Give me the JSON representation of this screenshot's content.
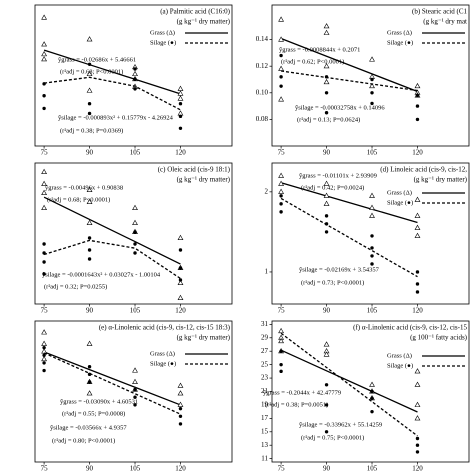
{
  "chart_data": [
    {
      "type": "scatter",
      "title": "(a) Palmitic acid (C16:0)",
      "subtitle": "(g kg⁻¹ dry matter)",
      "xlim": [
        72,
        137
      ],
      "xticks": [
        75,
        90,
        105,
        120
      ],
      "ylim": [
        0.8,
        4.7
      ],
      "fit_x": [
        75,
        90,
        105,
        120
      ],
      "legend": true,
      "series": [
        {
          "name": "Grass (Δ)",
          "marker": "triangle",
          "line": "solid",
          "color": "#000000",
          "x": [
            75,
            75,
            75,
            75,
            90,
            90,
            90,
            105,
            105,
            105,
            105,
            120,
            120,
            120,
            120
          ],
          "values": [
            4.35,
            3.61,
            3.34,
            3.2,
            3.75,
            2.79,
            2.33,
            2.98,
            2.79,
            2.65,
            2.44,
            2.38,
            2.25,
            2.11,
            1.7
          ],
          "fit": [
            3.452,
            3.049,
            2.646,
            2.243
          ]
        },
        {
          "name": "Silage (●)",
          "marker": "dot",
          "line": "dashed",
          "color": "#000000",
          "x": [
            75,
            75,
            75,
            90,
            90,
            90,
            105,
            105,
            105,
            120,
            120,
            120
          ],
          "values": [
            2.52,
            2.19,
            1.84,
            3.06,
            1.97,
            1.7,
            2.93,
            2.65,
            2.38,
            1.97,
            1.62,
            1.29
          ],
          "fit": [
            2.54,
            2.7,
            2.454,
            1.8
          ]
        }
      ],
      "annotations": [
        "ŷgrass = -0.02686x + 5.46661",
        "(r²adj = 0.68; P<0.0001)",
        "ŷsilage = -0.000893x² + 0.15779x - 4.26924",
        "(r²adj = 0.38; P=0.0369)"
      ]
    },
    {
      "type": "scatter",
      "title": "(b) Stearic acid (C1",
      "subtitle": "(g kg⁻¹ dry mat",
      "xlim": [
        72,
        137
      ],
      "xticks": [
        75,
        90,
        105,
        120
      ],
      "ylim": [
        0.06,
        0.166
      ],
      "yticks": [
        0.08,
        {
          "value": 0.1,
          "label": "0.10"
        },
        0.12,
        0.14
      ],
      "fit_x": [
        75,
        90,
        105,
        120
      ],
      "legend": true,
      "series": [
        {
          "name": "Grass (Δ)",
          "marker": "triangle",
          "line": "solid",
          "color": "#000000",
          "x": [
            75,
            75,
            75,
            75,
            90,
            90,
            90,
            90,
            105,
            105,
            105,
            120,
            120,
            120
          ],
          "values": [
            0.155,
            0.14,
            0.118,
            0.095,
            0.15,
            0.145,
            0.12,
            0.108,
            0.125,
            0.112,
            0.105,
            0.105,
            0.1,
            0.098
          ],
          "fit": [
            0.1408,
            0.1275,
            0.1142,
            0.101
          ]
        },
        {
          "name": "Silage (●)",
          "marker": "dot",
          "line": "dashed",
          "color": "#000000",
          "x": [
            75,
            75,
            75,
            90,
            90,
            90,
            105,
            105,
            105,
            120,
            120,
            120
          ],
          "values": [
            0.128,
            0.112,
            0.105,
            0.112,
            0.1,
            0.085,
            0.11,
            0.1,
            0.092,
            0.098,
            0.09,
            0.08
          ],
          "fit": [
            0.1164,
            0.1115,
            0.1066,
            0.1017
          ]
        }
      ],
      "annotations": [
        "ŷgrass = -0.0008844x + 0.2071",
        "(r²adj = 0.62; P<0.0001)",
        "ŷsilage = -0.00032758x + 0.14096",
        "(r²adj = 0.13; P=0.0624)"
      ]
    },
    {
      "type": "scatter",
      "title": "(c) Oleic acid (cis-9 18:1)",
      "subtitle": "(g kg⁻¹ dry matter)",
      "xlim": [
        72,
        137
      ],
      "xticks": [
        75,
        90,
        105,
        120
      ],
      "ylim": [
        0.18,
        0.65
      ],
      "fit_x": [
        75,
        90,
        105,
        120
      ],
      "legend": false,
      "series": [
        {
          "name": "Grass (Δ)",
          "marker": "triangle",
          "line": "solid",
          "color": "#000000",
          "x": [
            75,
            75,
            75,
            75,
            90,
            90,
            90,
            105,
            105,
            105,
            120,
            120,
            120,
            120
          ],
          "values": [
            0.62,
            0.58,
            0.55,
            0.5,
            0.56,
            0.52,
            0.45,
            0.5,
            0.45,
            0.42,
            0.4,
            0.3,
            0.25,
            0.2
          ],
          "fit": [
            0.536,
            0.462,
            0.388,
            0.313
          ]
        },
        {
          "name": "Silage (●)",
          "marker": "dot",
          "line": "dashed",
          "color": "#000000",
          "x": [
            75,
            75,
            75,
            75,
            90,
            90,
            90,
            105,
            105,
            105,
            120,
            120,
            120
          ],
          "values": [
            0.38,
            0.35,
            0.32,
            0.28,
            0.4,
            0.36,
            0.33,
            0.42,
            0.38,
            0.35,
            0.36,
            0.3,
            0.26
          ],
          "fit": [
            0.345,
            0.392,
            0.366,
            0.265
          ]
        }
      ],
      "annotations": [
        "ŷgrass = -0.00496x + 0.90838",
        "(r²adj = 0.68; P<0.0001)",
        "ŷsilage = -0.0001643x² + 0.03027x - 1.00104",
        "(r²adj = 0.32; P=0.0255)"
      ]
    },
    {
      "type": "scatter",
      "title": "(d) Linoleic acid (cis-9, cis-12,",
      "subtitle": "(g kg⁻¹ dry matter)",
      "xlim": [
        72,
        137
      ],
      "xticks": [
        75,
        90,
        105,
        120
      ],
      "ylim": [
        0.6,
        2.36
      ],
      "yticks": [
        1,
        2
      ],
      "fit_x": [
        75,
        90,
        105,
        120
      ],
      "legend": true,
      "series": [
        {
          "name": "Grass (Δ)",
          "marker": "triangle",
          "line": "solid",
          "color": "#000000",
          "x": [
            75,
            75,
            75,
            90,
            90,
            90,
            105,
            105,
            105,
            120,
            120,
            120,
            120
          ],
          "values": [
            2.2,
            2.1,
            2.0,
            2.1,
            1.95,
            1.85,
            1.95,
            1.8,
            1.7,
            1.9,
            1.7,
            1.55,
            1.45
          ],
          "fit": [
            2.113,
            1.948,
            1.783,
            1.618
          ]
        },
        {
          "name": "Silage (●)",
          "marker": "dot",
          "line": "dashed",
          "color": "#000000",
          "x": [
            75,
            75,
            75,
            90,
            90,
            90,
            105,
            105,
            105,
            105,
            120,
            120,
            120
          ],
          "values": [
            1.95,
            1.85,
            1.75,
            1.7,
            1.6,
            1.5,
            1.45,
            1.3,
            1.2,
            1.1,
            1.0,
            0.85,
            0.75
          ],
          "fit": [
            1.917,
            1.591,
            1.266,
            0.941
          ]
        }
      ],
      "annotations": [
        "ŷgrass = -0.01101x + 2.93909",
        "(r²adj = 0.42; P=0.0024)",
        "ŷsilage = -0.02169x + 3.54357",
        "(r²adj = 0.73; P<0.0001)"
      ]
    },
    {
      "type": "scatter",
      "title": "(e) α-Linolenic acid (cis-9, cis-12, cis-15 18:3)",
      "subtitle": "(g kg⁻¹ dry matter)",
      "xlim": [
        72,
        137
      ],
      "xticks": [
        75,
        90,
        105,
        120
      ],
      "ylim": [
        -0.6,
        3.1
      ],
      "fit_x": [
        75,
        90,
        105,
        120
      ],
      "legend": true,
      "series": [
        {
          "name": "Grass (Δ)",
          "marker": "triangle",
          "line": "solid",
          "color": "#000000",
          "x": [
            75,
            75,
            75,
            75,
            90,
            90,
            90,
            105,
            105,
            105,
            120,
            120,
            120
          ],
          "values": [
            2.8,
            2.5,
            2.3,
            2.1,
            2.5,
            1.5,
            1.2,
            1.8,
            1.5,
            1.3,
            1.4,
            1.2,
            0.9
          ],
          "fit": [
            2.288,
            1.824,
            1.361,
            0.897
          ]
        },
        {
          "name": "Silage (●)",
          "marker": "dot",
          "line": "dashed",
          "color": "#000000",
          "x": [
            75,
            75,
            75,
            75,
            90,
            90,
            90,
            105,
            105,
            105,
            120,
            120,
            120
          ],
          "values": [
            2.4,
            2.2,
            2.0,
            1.8,
            1.9,
            1.7,
            1.5,
            1.3,
            1.1,
            0.9,
            0.8,
            0.6,
            0.4
          ],
          "fit": [
            2.261,
            1.726,
            1.191,
            0.656
          ]
        }
      ],
      "annotations": [
        "ŷgrass = -0.03090x + 4.60531",
        "(r²adj = 0.55; P=0.0008)",
        "ŷsilage = -0.03566x + 4.9357",
        "(r²adj = 0.80; P<0.0001)"
      ]
    },
    {
      "type": "scatter",
      "title": "(f) α-Linolenic acid (cis-9, cis-12, cis-15",
      "subtitle": "(g 100⁻¹ fatty acids)",
      "xlim": [
        72,
        137
      ],
      "xticks": [
        75,
        90,
        105,
        120
      ],
      "ylim": [
        10.5,
        31.5
      ],
      "yticks": [
        11,
        13,
        15,
        17,
        19,
        21,
        23,
        25,
        27,
        29,
        31
      ],
      "fit_x": [
        75,
        90,
        105,
        120
      ],
      "legend": true,
      "series": [
        {
          "name": "Grass (Δ)",
          "marker": "triangle",
          "line": "solid",
          "color": "#000000",
          "x": [
            75,
            75,
            75,
            75,
            90,
            90,
            90,
            105,
            105,
            105,
            120,
            120,
            120,
            120
          ],
          "values": [
            30,
            29,
            28.5,
            27,
            28,
            27,
            26.5,
            22,
            21,
            20,
            24,
            22,
            19,
            17
          ],
          "fit": [
            27.148,
            24.082,
            21.016,
            17.95
          ]
        },
        {
          "name": "Silage (●)",
          "marker": "dot",
          "line": "dashed",
          "color": "#000000",
          "x": [
            75,
            75,
            75,
            90,
            90,
            90,
            105,
            105,
            105,
            120,
            120,
            120
          ],
          "values": [
            27,
            25,
            24,
            22,
            19,
            15,
            21,
            20,
            18,
            14,
            13,
            12
          ],
          "fit": [
            29.671,
            24.577,
            19.482,
            14.388
          ]
        }
      ],
      "annotations": [
        "ŷgrass = -0.2044x + 42.47779",
        "(r²adj = 0.38; P=0.0051)",
        "ŷsilage = -0.33962x + 55.14259",
        "(r²adj = 0.75; P<0.0001)"
      ]
    }
  ]
}
